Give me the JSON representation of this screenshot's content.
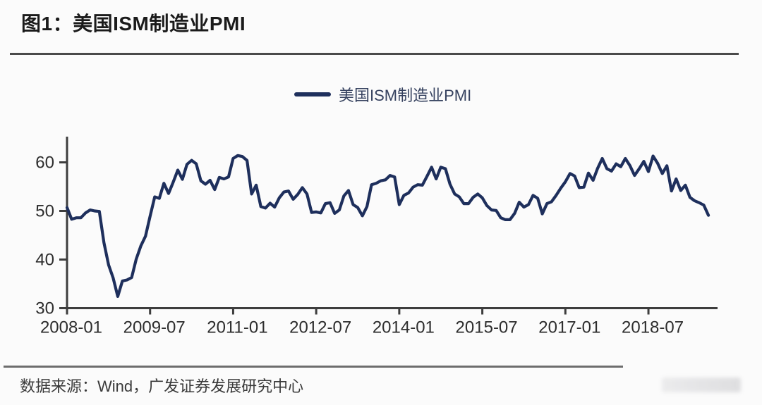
{
  "figure": {
    "title": "图1：美国ISM制造业PMI",
    "source": "数据来源：Wind，广发证券发展研究中心"
  },
  "chart_data": {
    "type": "line",
    "title": "美国ISM制造业PMI",
    "xlabel": "",
    "ylabel": "",
    "legend": {
      "label": "美国ISM制造业PMI",
      "position": "top-center"
    },
    "grid": false,
    "x_monthly_start": "2008-01",
    "x_monthly_end": "2019-08",
    "ylim": [
      30,
      65
    ],
    "y_ticks": [
      30,
      40,
      50,
      60
    ],
    "x_ticks": [
      {
        "month_index": 0,
        "label": "2008-01"
      },
      {
        "month_index": 18,
        "label": "2009-07"
      },
      {
        "month_index": 36,
        "label": "2011-01"
      },
      {
        "month_index": 54,
        "label": "2012-07"
      },
      {
        "month_index": 72,
        "label": "2014-01"
      },
      {
        "month_index": 90,
        "label": "2015-07"
      },
      {
        "month_index": 108,
        "label": "2017-01"
      },
      {
        "month_index": 126,
        "label": "2018-07"
      }
    ],
    "series": [
      {
        "name": "美国ISM制造业PMI",
        "values": [
          50.7,
          48.3,
          48.6,
          48.6,
          49.6,
          50.2,
          50.0,
          49.9,
          43.5,
          38.9,
          36.2,
          32.4,
          35.6,
          35.8,
          36.3,
          40.1,
          42.8,
          44.8,
          48.9,
          52.9,
          52.6,
          55.7,
          53.6,
          55.9,
          58.4,
          56.5,
          59.6,
          60.4,
          59.7,
          56.2,
          55.5,
          56.3,
          54.4,
          56.9,
          56.6,
          57.0,
          60.8,
          61.4,
          61.2,
          60.4,
          53.5,
          55.3,
          50.9,
          50.6,
          51.6,
          50.8,
          52.7,
          53.9,
          54.1,
          52.4,
          53.4,
          54.8,
          53.5,
          49.7,
          49.8,
          49.6,
          51.5,
          51.7,
          49.5,
          50.2,
          53.1,
          54.2,
          51.3,
          50.7,
          49.0,
          50.9,
          55.4,
          55.7,
          56.2,
          56.4,
          57.3,
          57.0,
          51.3,
          53.2,
          53.7,
          54.9,
          55.4,
          55.3,
          57.1,
          59.0,
          56.6,
          59.0,
          58.7,
          55.5,
          53.5,
          52.9,
          51.5,
          51.5,
          52.8,
          53.5,
          52.7,
          51.1,
          50.2,
          50.1,
          48.6,
          48.2,
          48.2,
          49.5,
          51.8,
          50.8,
          51.3,
          53.2,
          52.6,
          49.4,
          51.5,
          51.9,
          53.2,
          54.7,
          56.0,
          57.7,
          57.2,
          54.8,
          54.9,
          57.8,
          56.3,
          58.8,
          60.8,
          58.7,
          58.2,
          59.7,
          59.1,
          60.8,
          59.3,
          57.3,
          58.7,
          60.2,
          58.1,
          61.3,
          59.8,
          57.7,
          59.3,
          54.1,
          56.6,
          54.2,
          55.3,
          52.8,
          52.1,
          51.7,
          51.2,
          49.1
        ]
      }
    ],
    "colors": {
      "line": "#1e2f5c",
      "axis": "#3d3d3d",
      "tick_label": "#2d2d2d"
    }
  }
}
